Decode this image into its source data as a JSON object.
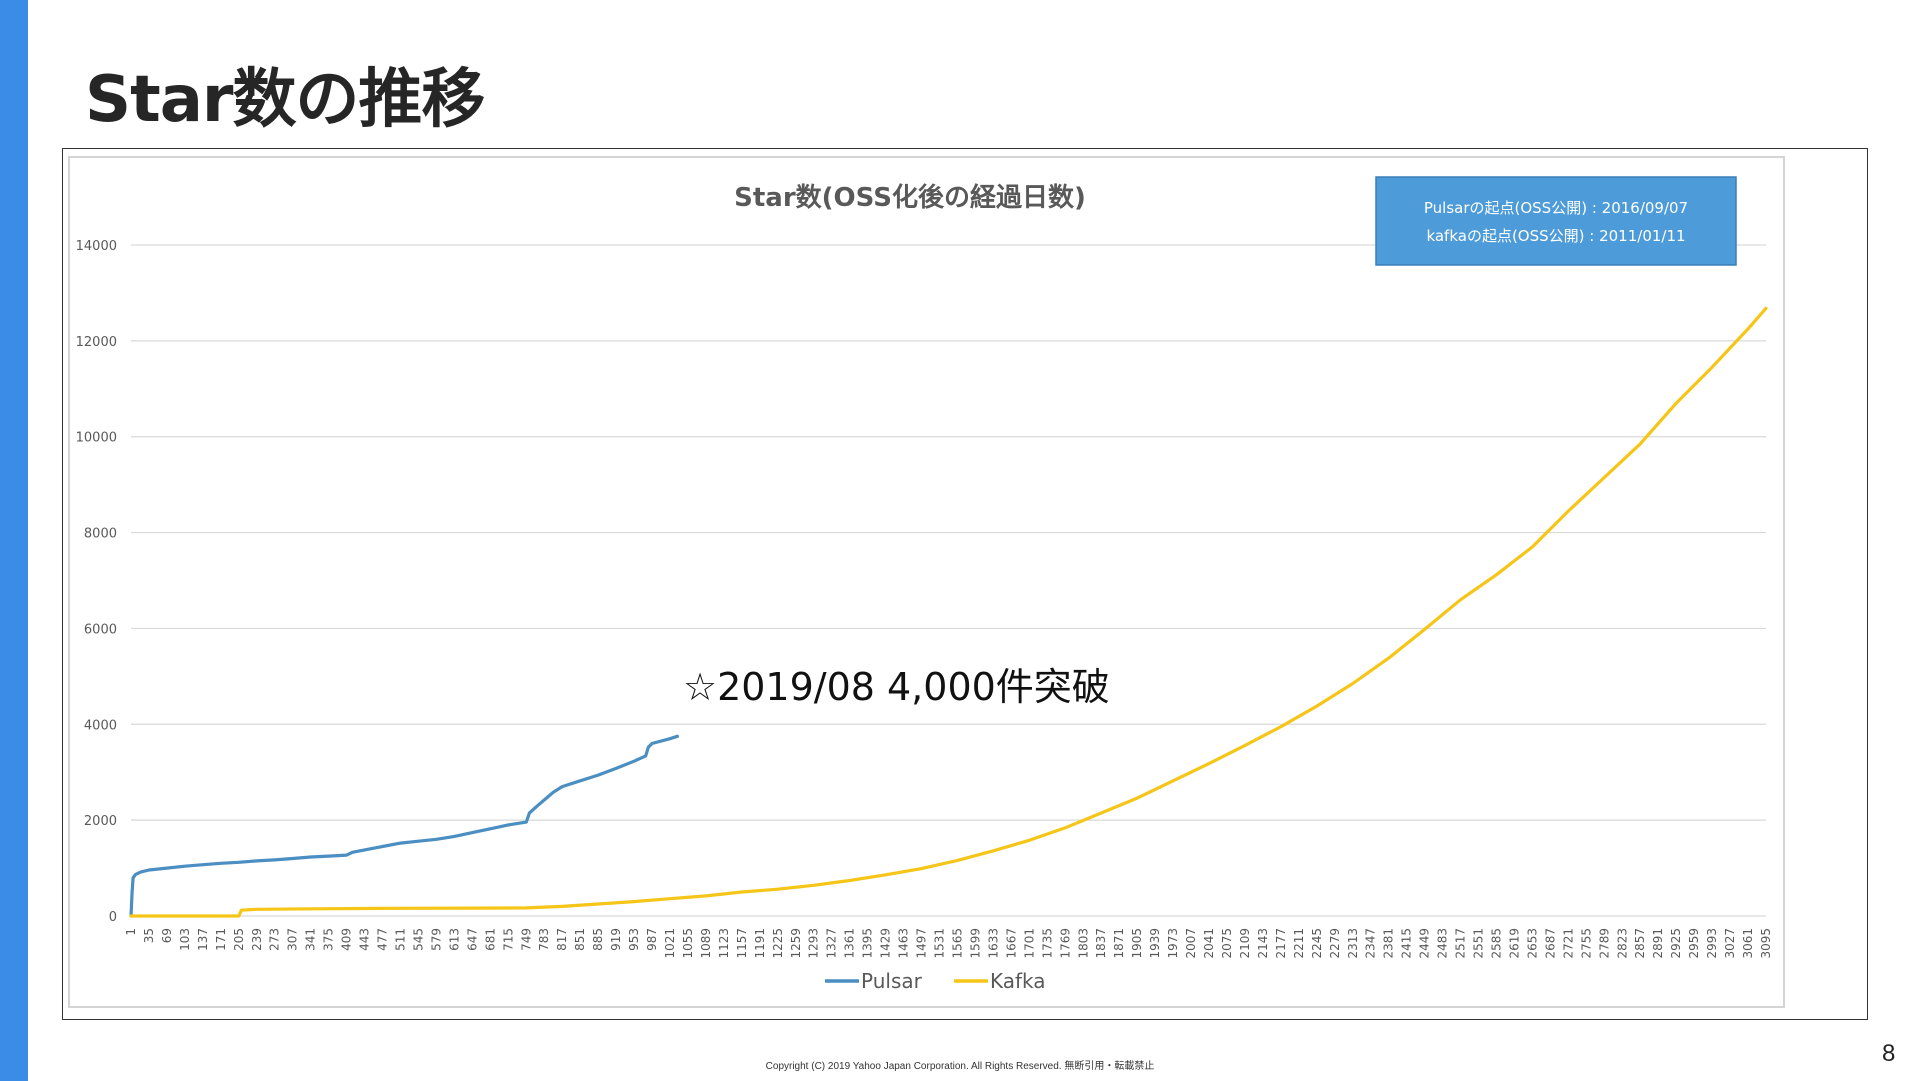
{
  "slide": {
    "title": "Star数の推移",
    "annotation": "☆2019/08 4,000件突破",
    "footer": "Copyright (C) 2019 Yahoo Japan Corporation. All Rights Reserved. 無断引用・転載禁止",
    "page_number": "8",
    "accent_color": "#3a8ce6"
  },
  "chart_data": {
    "type": "line",
    "title": "Star数(OSS化後の経過日数)",
    "xlabel": "",
    "ylabel": "",
    "ylim": [
      0,
      14000
    ],
    "yticks": [
      "0",
      "2000",
      "4000",
      "6000",
      "8000",
      "10000",
      "12000",
      "14000"
    ],
    "xticks": [
      "1",
      "35",
      "69",
      "103",
      "137",
      "171",
      "205",
      "239",
      "273",
      "307",
      "341",
      "375",
      "409",
      "443",
      "477",
      "511",
      "545",
      "579",
      "613",
      "647",
      "681",
      "715",
      "749",
      "783",
      "817",
      "851",
      "885",
      "919",
      "953",
      "987",
      "1021",
      "1055",
      "1089",
      "1123",
      "1157",
      "1191",
      "1225",
      "1259",
      "1293",
      "1327",
      "1361",
      "1395",
      "1429",
      "1463",
      "1497",
      "1531",
      "1565",
      "1599",
      "1633",
      "1667",
      "1701",
      "1735",
      "1769",
      "1803",
      "1837",
      "1871",
      "1905",
      "1939",
      "1973",
      "2007",
      "2041",
      "2075",
      "2109",
      "2143",
      "2177",
      "2211",
      "2245",
      "2279",
      "2313",
      "2347",
      "2381",
      "2415",
      "2449",
      "2483",
      "2517",
      "2551",
      "2585",
      "2619",
      "2653",
      "2687",
      "2721",
      "2755",
      "2789",
      "2823",
      "2857",
      "2891",
      "2925",
      "2959",
      "2993",
      "3027",
      "3061",
      "3095"
    ],
    "xlim": [
      1,
      3095
    ],
    "grid": true,
    "legend_position": "bottom",
    "info_box": [
      "Pulsarの起点(OSS公開) : 2016/09/07",
      "kafkaの起点(OSS公開) : 2011/01/11"
    ],
    "series": [
      {
        "name": "Pulsar",
        "color": "#4a8ec2",
        "x": [
          1,
          3,
          5,
          10,
          20,
          35,
          69,
          103,
          137,
          171,
          205,
          239,
          273,
          307,
          341,
          375,
          409,
          420,
          443,
          477,
          511,
          545,
          579,
          613,
          647,
          681,
          715,
          749,
          755,
          770,
          783,
          800,
          817,
          851,
          885,
          919,
          953,
          975,
          980,
          987,
          1021,
          1035
        ],
        "y": [
          0,
          500,
          800,
          870,
          920,
          960,
          1000,
          1040,
          1070,
          1100,
          1120,
          1150,
          1170,
          1200,
          1230,
          1250,
          1270,
          1330,
          1380,
          1450,
          1520,
          1560,
          1600,
          1660,
          1740,
          1820,
          1900,
          1960,
          2150,
          2300,
          2420,
          2580,
          2700,
          2820,
          2940,
          3080,
          3230,
          3340,
          3520,
          3600,
          3700,
          3750
        ]
      },
      {
        "name": "Kafka",
        "color": "#f5c518",
        "x": [
          1,
          100,
          205,
          210,
          239,
          350,
          500,
          650,
          749,
          817,
          885,
          953,
          1021,
          1089,
          1157,
          1225,
          1293,
          1361,
          1429,
          1497,
          1565,
          1633,
          1701,
          1769,
          1837,
          1905,
          1973,
          2041,
          2109,
          2177,
          2245,
          2313,
          2381,
          2449,
          2517,
          2585,
          2653,
          2721,
          2789,
          2857,
          2925,
          2993,
          3061,
          3095
        ],
        "y": [
          0,
          0,
          0,
          120,
          140,
          150,
          160,
          165,
          170,
          200,
          250,
          300,
          360,
          420,
          500,
          560,
          640,
          740,
          860,
          990,
          1160,
          1360,
          1580,
          1840,
          2150,
          2460,
          2820,
          3180,
          3560,
          3950,
          4380,
          4850,
          5380,
          5980,
          6600,
          7120,
          7700,
          8450,
          9150,
          9850,
          10700,
          11450,
          12250,
          12680
        ]
      }
    ]
  }
}
